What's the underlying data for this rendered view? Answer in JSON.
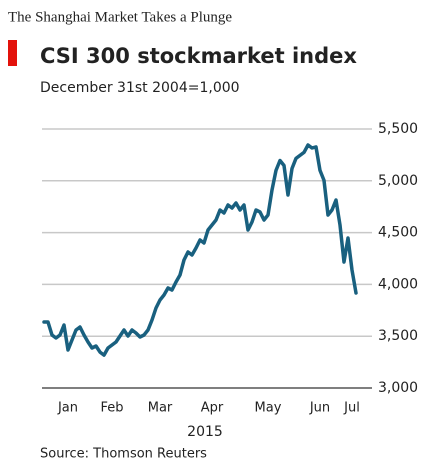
{
  "header": "The Shanghai Market Takes a Plunge",
  "chart_data": {
    "type": "line",
    "title": "CSI 300 stockmarket index",
    "subtitle": "December 31st 2004=1,000",
    "xlabel": "2015",
    "source": "Source: Thomson Reuters",
    "color": "#19607f",
    "categories": [
      null,
      null,
      null,
      null,
      null,
      null,
      "Jan",
      null,
      null,
      null,
      null,
      null,
      null,
      null,
      null,
      null,
      null,
      "Feb",
      null,
      null,
      null,
      null,
      null,
      null,
      null,
      null,
      null,
      null,
      null,
      "Mar",
      null,
      null,
      null,
      null,
      null,
      null,
      null,
      null,
      null,
      null,
      null,
      null,
      "Apr",
      null,
      null,
      null,
      null,
      null,
      null,
      null,
      null,
      null,
      null,
      null,
      null,
      null,
      "May",
      null,
      null,
      null,
      null,
      null,
      null,
      null,
      null,
      null,
      null,
      null,
      null,
      "Jun",
      null,
      null,
      null,
      null,
      null,
      null,
      null,
      "Jul",
      null
    ],
    "values": [
      3637,
      3637,
      3512,
      3483,
      3512,
      3608,
      3367,
      3463,
      3560,
      3589,
      3512,
      3444,
      3386,
      3405,
      3347,
      3318,
      3386,
      3415,
      3444,
      3502,
      3560,
      3502,
      3560,
      3531,
      3492,
      3512,
      3560,
      3656,
      3772,
      3849,
      3898,
      3965,
      3946,
      4023,
      4091,
      4236,
      4313,
      4284,
      4351,
      4429,
      4400,
      4525,
      4573,
      4622,
      4718,
      4689,
      4766,
      4737,
      4786,
      4718,
      4766,
      4525,
      4602,
      4718,
      4699,
      4622,
      4670,
      4911,
      5100,
      5196,
      5148,
      4863,
      5119,
      5216,
      5245,
      5274,
      5346,
      5317,
      5327,
      5100,
      5004,
      4670,
      4718,
      4815,
      4573,
      4216,
      4448,
      4139,
      3917
    ],
    "ylim": [
      3000,
      5500
    ],
    "yticks": [
      {
        "value": 3000,
        "label": "3,000"
      },
      {
        "value": 3500,
        "label": "3,500"
      },
      {
        "value": 4000,
        "label": "4,000"
      },
      {
        "value": 4500,
        "label": "4,500"
      },
      {
        "value": 5000,
        "label": "5,000"
      },
      {
        "value": 5500,
        "label": "5,500"
      }
    ],
    "grid": true
  }
}
